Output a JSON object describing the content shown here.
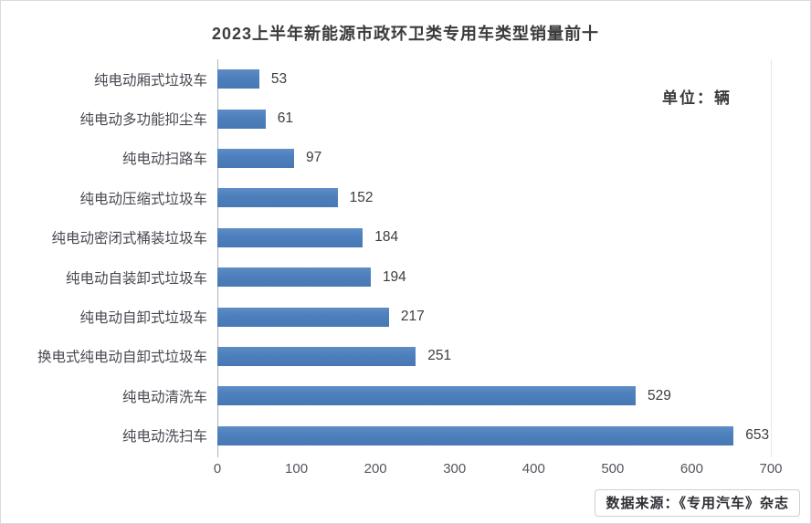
{
  "chart_data": {
    "type": "bar",
    "orientation": "horizontal",
    "title": "2023上半年新能源市政环卫类专用车类型销量前十",
    "unit_label": "单位：辆",
    "categories": [
      "纯电动厢式垃圾车",
      "纯电动多功能抑尘车",
      "纯电动扫路车",
      "纯电动压缩式垃圾车",
      "纯电动密闭式桶装垃圾车",
      "纯电动自装卸式垃圾车",
      "纯电动自卸式垃圾车",
      "换电式纯电动自卸式垃圾车",
      "纯电动清洗车",
      "纯电动洗扫车"
    ],
    "values": [
      53,
      61,
      97,
      152,
      184,
      194,
      217,
      251,
      529,
      653
    ],
    "xlabel": "",
    "ylabel": "",
    "xlim": [
      0,
      700
    ],
    "x_ticks": [
      0,
      100,
      200,
      300,
      400,
      500,
      600,
      700
    ],
    "grid": "off",
    "legend": "none",
    "bar_color": "#4d80bd",
    "value_labels": "shown at bar ends"
  },
  "footer": {
    "source_label": "数据来源：《专用汽车》杂志"
  }
}
